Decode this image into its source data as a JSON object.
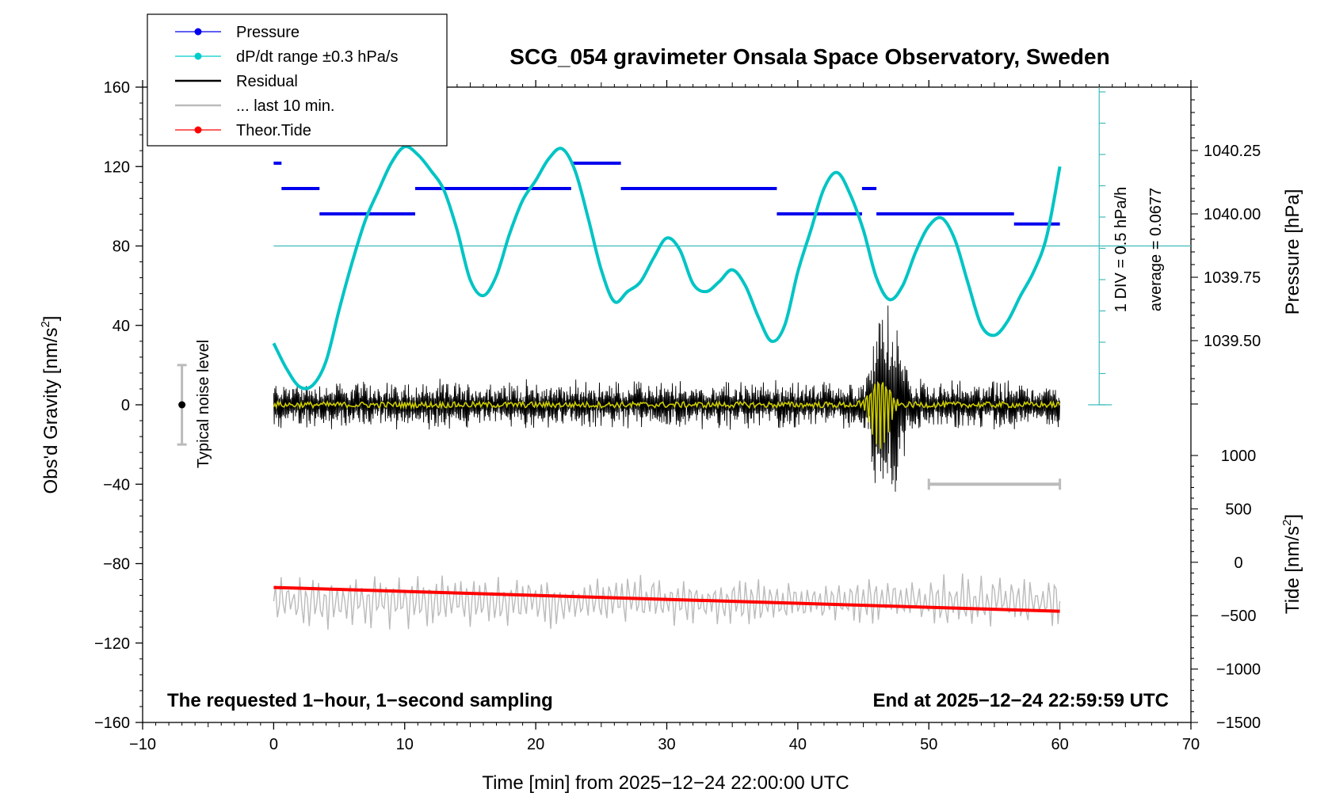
{
  "chart_data": {
    "type": "line",
    "title": "SCG_054 gravimeter Onsala Space Observatory, Sweden",
    "xlabel": "Time [min] from 2025−12−24 22:00:00 UTC",
    "ylabel_left_main": "Obs'd Gravity [nm/s",
    "ylabel_left_sup": "2",
    "ylabel_left_end": "]",
    "ylabel_right_top": "Pressure [hPa]",
    "ylabel_right_bottom_main": "Tide [nm/s",
    "ylabel_right_bottom_sup": "2",
    "ylabel_right_bottom_end": "]",
    "xlim": [
      -10,
      70
    ],
    "ylim": [
      -160,
      160
    ],
    "x_ticks": [
      -10,
      0,
      10,
      20,
      30,
      40,
      50,
      60,
      70
    ],
    "x_tick_labels": [
      "−10",
      "0",
      "10",
      "20",
      "30",
      "40",
      "50",
      "60",
      "70"
    ],
    "y_ticks": [
      160,
      120,
      80,
      40,
      0,
      -40,
      -80,
      -120,
      -160
    ],
    "y_tick_labels": [
      "160",
      "120",
      "80",
      "40",
      "0",
      "−40",
      "−80",
      "−120",
      "−160"
    ],
    "pressure_axis": {
      "range": [
        1039.25,
        1040.5
      ],
      "ticks": [
        1040.25,
        1040.0,
        1039.75,
        1039.5
      ],
      "tick_labels": [
        "1040.25",
        "1040.00",
        "1039.75",
        "1039.50"
      ]
    },
    "tide_axis": {
      "range": [
        -1500,
        1000
      ],
      "ticks": [
        1000,
        500,
        0,
        -500,
        -1000,
        -1500
      ],
      "tick_labels": [
        "1000",
        "500",
        "0",
        "−500",
        "−1000",
        "−1500"
      ]
    },
    "legend": {
      "placement": "top-left",
      "items": [
        {
          "label": "Pressure",
          "color": "#0000ee",
          "marker": true
        },
        {
          "label": "dP/dt range ±0.3 hPa/s",
          "color": "#00cccc",
          "marker": true
        },
        {
          "label": "Residual",
          "color": "#000000",
          "marker": false
        },
        {
          "label": "... last 10 min.",
          "color": "#bbbbbb",
          "marker": false
        },
        {
          "label": "Theor.Tide",
          "color": "#ff0000",
          "marker": true
        }
      ]
    },
    "noise_bar": {
      "label": "Typical noise level",
      "x": -7,
      "center": 0,
      "half_range": 20
    },
    "dpdt_scale": {
      "label_div": "1 DIV = 0.5 hPa/h",
      "label_avg": "average = 0.0677",
      "reference_level_gravity": 80
    },
    "footer_left": "The requested 1−hour, 1−second sampling",
    "footer_right": "End at 2025−12−24 22:59:59 UTC",
    "series": [
      {
        "name": "Pressure",
        "color": "#0000ee",
        "segments": [
          {
            "x0": 0.0,
            "x1": 0.6,
            "hPa": 1040.2
          },
          {
            "x0": 0.6,
            "x1": 3.5,
            "hPa": 1040.1
          },
          {
            "x0": 3.5,
            "x1": 10.8,
            "hPa": 1040.0
          },
          {
            "x0": 10.8,
            "x1": 22.7,
            "hPa": 1040.1
          },
          {
            "x0": 22.7,
            "x1": 26.5,
            "hPa": 1040.2
          },
          {
            "x0": 26.5,
            "x1": 38.4,
            "hPa": 1040.1
          },
          {
            "x0": 38.4,
            "x1": 44.9,
            "hPa": 1040.0
          },
          {
            "x0": 44.9,
            "x1": 46.0,
            "hPa": 1040.1
          },
          {
            "x0": 46.0,
            "x1": 56.5,
            "hPa": 1040.0
          },
          {
            "x0": 56.5,
            "x1": 60.0,
            "hPa": 1039.96
          }
        ]
      },
      {
        "name": "dP/dt",
        "color": "#00c4c4",
        "x": [
          0,
          1,
          2,
          3,
          4,
          5,
          6,
          7,
          8,
          9,
          10,
          11,
          12,
          13,
          14,
          15,
          16,
          17,
          18,
          19,
          20,
          21,
          22,
          23,
          24,
          25,
          26,
          27,
          28,
          29,
          30,
          31,
          32,
          33,
          34,
          35,
          36,
          37,
          38,
          39,
          40,
          41,
          42,
          43,
          44,
          45,
          46,
          47,
          48,
          49,
          50,
          51,
          52,
          53,
          54,
          55,
          56,
          57,
          58,
          59,
          60
        ],
        "y": [
          31,
          18,
          9,
          10,
          22,
          48,
          72,
          93,
          108,
          122,
          130,
          126,
          118,
          108,
          88,
          63,
          55,
          65,
          86,
          103,
          113,
          124,
          129,
          118,
          94,
          68,
          52,
          57,
          62,
          74,
          84,
          78,
          61,
          57,
          62,
          68,
          60,
          44,
          32,
          40,
          67,
          88,
          109,
          117,
          106,
          88,
          64,
          53,
          60,
          77,
          90,
          94,
          83,
          61,
          40,
          35,
          42,
          55,
          67,
          85,
          120
        ]
      },
      {
        "name": "Residual",
        "color": "#000000",
        "x_range": [
          0,
          60
        ],
        "typical_amplitude": 10,
        "event": {
          "x_range": [
            45,
            48.5
          ],
          "peak_amplitude": 65
        }
      },
      {
        "name": "Residual smoothed",
        "color": "#cccc00",
        "x_range": [
          0,
          60
        ],
        "event_peak_amplitude": 22
      },
      {
        "name": "... last 10 min.",
        "color": "#bbbbbb",
        "scale_bar": {
          "x0": 50,
          "x1": 60,
          "y": -40
        },
        "x_range": [
          0,
          60
        ],
        "baseline": -99,
        "amplitude": 12
      },
      {
        "name": "Theor.Tide",
        "color": "#ff0000",
        "x": [
          0,
          60
        ],
        "y": [
          -92,
          -104
        ]
      }
    ]
  }
}
